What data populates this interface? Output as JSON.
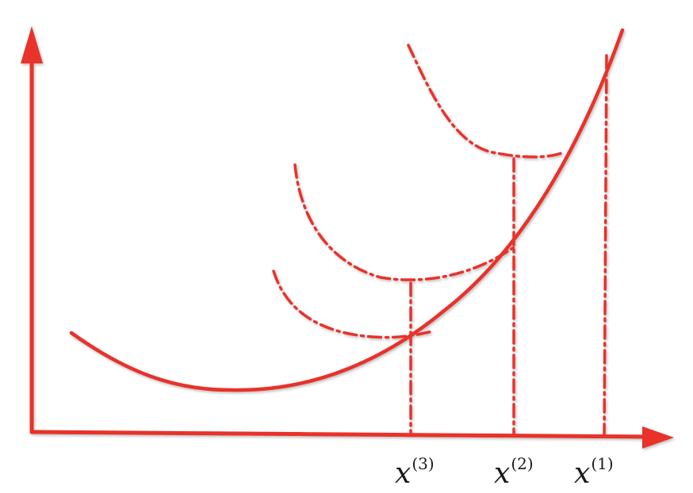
{
  "colors": {
    "stroke": "#e8302a",
    "label": "#1a1a1a"
  },
  "labels": {
    "x3": {
      "base": "x",
      "sup": "(3)"
    },
    "x2": {
      "base": "x",
      "sup": "(2)"
    },
    "x1": {
      "base": "x",
      "sup": "(1)"
    }
  }
}
